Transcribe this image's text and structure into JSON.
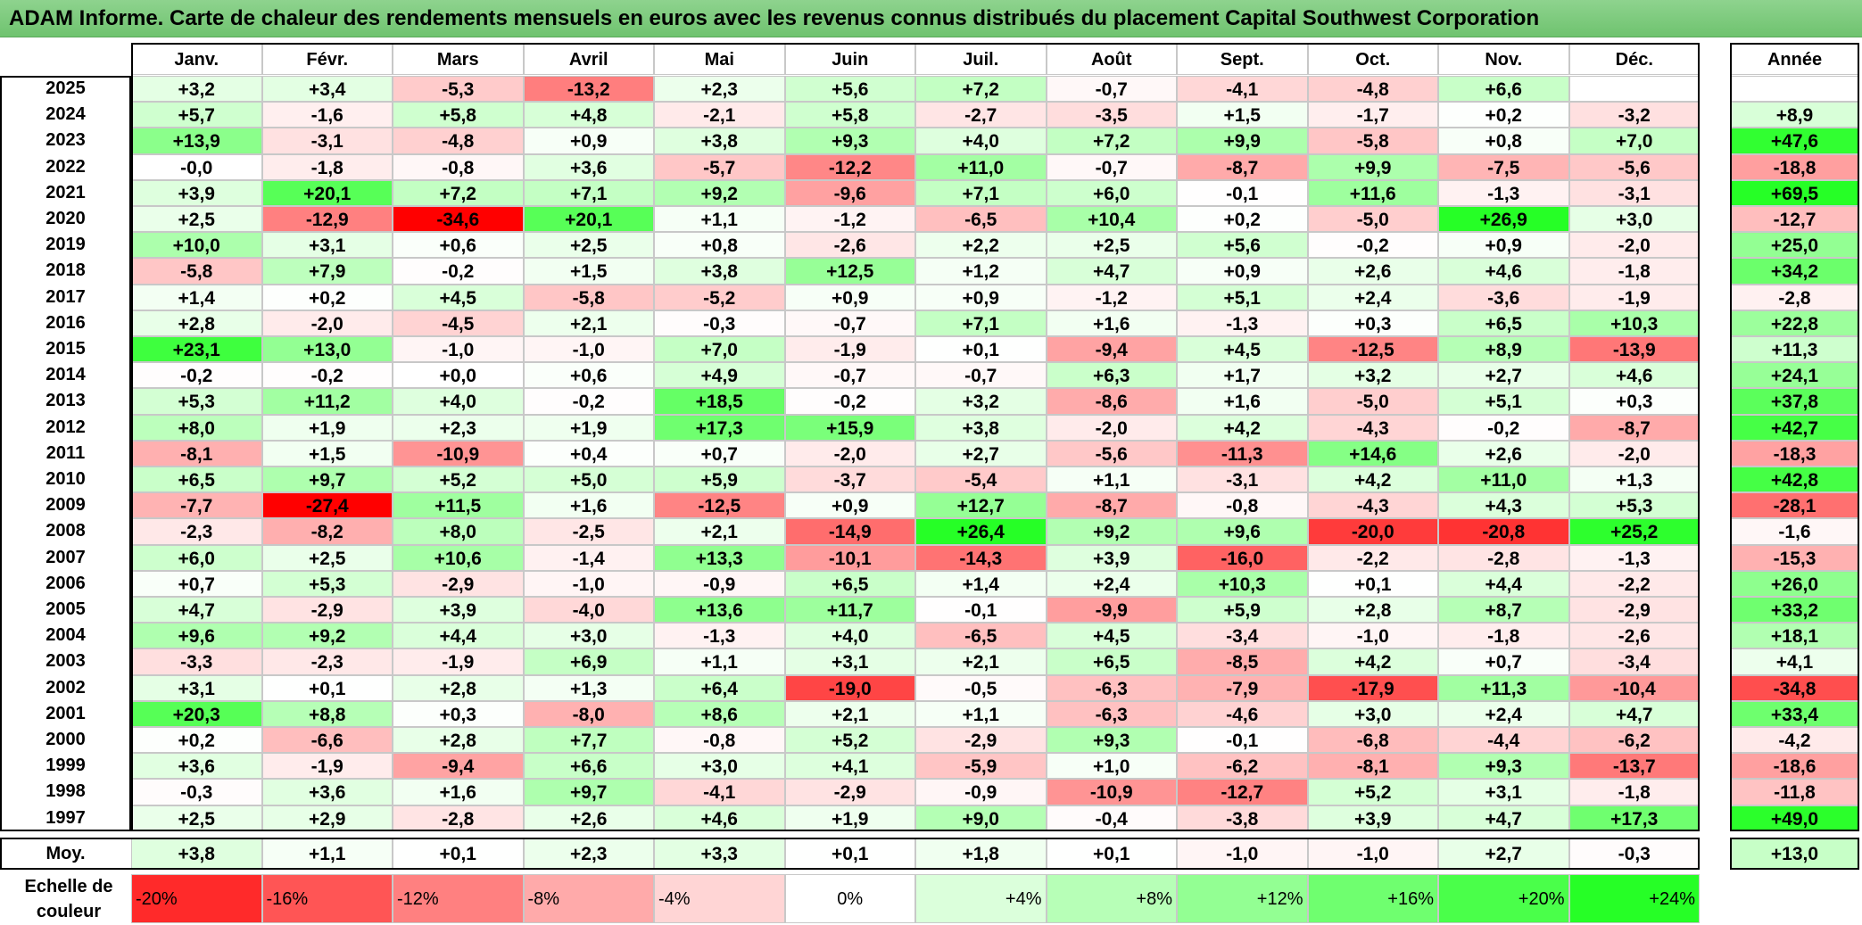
{
  "title": "ADAM Informe. Carte de chaleur des rendements mensuels en euros avec les revenus connus distribués du placement Capital Southwest Corporation",
  "chart_data": {
    "type": "heatmap",
    "title": "ADAM Informe. Carte de chaleur des rendements mensuels en euros avec les revenus connus distribués du placement Capital Southwest Corporation",
    "columns": [
      "Janv.",
      "Févr.",
      "Mars",
      "Avril",
      "Mai",
      "Juin",
      "Juil.",
      "Août",
      "Sept.",
      "Oct.",
      "Nov.",
      "Déc."
    ],
    "year_header": "Année",
    "rows": [
      {
        "year": "2025",
        "values": [
          "+3,2",
          "+3,4",
          "-5,3",
          "-13,2",
          "+2,3",
          "+5,6",
          "+7,2",
          "-0,7",
          "-4,1",
          "-4,8",
          "+6,6",
          ""
        ],
        "annual": ""
      },
      {
        "year": "2024",
        "values": [
          "+5,7",
          "-1,6",
          "+5,8",
          "+4,8",
          "-2,1",
          "+5,8",
          "-2,7",
          "-3,5",
          "+1,5",
          "-1,7",
          "+0,2",
          "-3,2"
        ],
        "annual": "+8,9"
      },
      {
        "year": "2023",
        "values": [
          "+13,9",
          "-3,1",
          "-4,8",
          "+0,9",
          "+3,8",
          "+9,3",
          "+4,0",
          "+7,2",
          "+9,9",
          "-5,8",
          "+0,8",
          "+7,0"
        ],
        "annual": "+47,6"
      },
      {
        "year": "2022",
        "values": [
          "-0,0",
          "-1,8",
          "-0,8",
          "+3,6",
          "-5,7",
          "-12,2",
          "+11,0",
          "-0,7",
          "-8,7",
          "+9,9",
          "-7,5",
          "-5,6"
        ],
        "annual": "-18,8"
      },
      {
        "year": "2021",
        "values": [
          "+3,9",
          "+20,1",
          "+7,2",
          "+7,1",
          "+9,2",
          "-9,6",
          "+7,1",
          "+6,0",
          "-0,1",
          "+11,6",
          "-1,3",
          "-3,1"
        ],
        "annual": "+69,5"
      },
      {
        "year": "2020",
        "values": [
          "+2,5",
          "-12,9",
          "-34,6",
          "+20,1",
          "+1,1",
          "-1,2",
          "-6,5",
          "+10,4",
          "+0,2",
          "-5,0",
          "+26,9",
          "+3,0"
        ],
        "annual": "-12,7"
      },
      {
        "year": "2019",
        "values": [
          "+10,0",
          "+3,1",
          "+0,6",
          "+2,5",
          "+0,8",
          "-2,6",
          "+2,2",
          "+2,5",
          "+5,6",
          "-0,2",
          "+0,9",
          "-2,0"
        ],
        "annual": "+25,0"
      },
      {
        "year": "2018",
        "values": [
          "-5,8",
          "+7,9",
          "-0,2",
          "+1,5",
          "+3,8",
          "+12,5",
          "+1,2",
          "+4,7",
          "+0,9",
          "+2,6",
          "+4,6",
          "-1,8"
        ],
        "annual": "+34,2"
      },
      {
        "year": "2017",
        "values": [
          "+1,4",
          "+0,2",
          "+4,5",
          "-5,8",
          "-5,2",
          "+0,9",
          "+0,9",
          "-1,2",
          "+5,1",
          "+2,4",
          "-3,6",
          "-1,9"
        ],
        "annual": "-2,8"
      },
      {
        "year": "2016",
        "values": [
          "+2,8",
          "-2,0",
          "-4,5",
          "+2,1",
          "-0,3",
          "-0,7",
          "+7,1",
          "+1,6",
          "-1,3",
          "+0,3",
          "+6,5",
          "+10,3"
        ],
        "annual": "+22,8"
      },
      {
        "year": "2015",
        "values": [
          "+23,1",
          "+13,0",
          "-1,0",
          "-1,0",
          "+7,0",
          "-1,9",
          "+0,1",
          "-9,4",
          "+4,5",
          "-12,5",
          "+8,9",
          "-13,9"
        ],
        "annual": "+11,3"
      },
      {
        "year": "2014",
        "values": [
          "-0,2",
          "-0,2",
          "+0,0",
          "+0,6",
          "+4,9",
          "-0,7",
          "-0,7",
          "+6,3",
          "+1,7",
          "+3,2",
          "+2,7",
          "+4,6"
        ],
        "annual": "+24,1"
      },
      {
        "year": "2013",
        "values": [
          "+5,3",
          "+11,2",
          "+4,0",
          "-0,2",
          "+18,5",
          "-0,2",
          "+3,2",
          "-8,6",
          "+1,6",
          "-5,0",
          "+5,1",
          "+0,3"
        ],
        "annual": "+37,8"
      },
      {
        "year": "2012",
        "values": [
          "+8,0",
          "+1,9",
          "+2,3",
          "+1,9",
          "+17,3",
          "+15,9",
          "+3,8",
          "-2,0",
          "+4,2",
          "-4,3",
          "-0,2",
          "-8,7"
        ],
        "annual": "+42,7"
      },
      {
        "year": "2011",
        "values": [
          "-8,1",
          "+1,5",
          "-10,9",
          "+0,4",
          "+0,7",
          "-2,0",
          "+2,7",
          "-5,6",
          "-11,3",
          "+14,6",
          "+2,6",
          "-2,0"
        ],
        "annual": "-18,3"
      },
      {
        "year": "2010",
        "values": [
          "+6,5",
          "+9,7",
          "+5,2",
          "+5,0",
          "+5,9",
          "-3,7",
          "-5,4",
          "+1,1",
          "-3,1",
          "+4,2",
          "+11,0",
          "+1,3"
        ],
        "annual": "+42,8"
      },
      {
        "year": "2009",
        "values": [
          "-7,7",
          "-27,4",
          "+11,5",
          "+1,6",
          "-12,5",
          "+0,9",
          "+12,7",
          "-8,7",
          "-0,8",
          "-4,3",
          "+4,3",
          "+5,3"
        ],
        "annual": "-28,1"
      },
      {
        "year": "2008",
        "values": [
          "-2,3",
          "-8,2",
          "+8,0",
          "-2,5",
          "+2,1",
          "-14,9",
          "+26,4",
          "+9,2",
          "+9,6",
          "-20,0",
          "-20,8",
          "+25,2"
        ],
        "annual": "-1,6"
      },
      {
        "year": "2007",
        "values": [
          "+6,0",
          "+2,5",
          "+10,6",
          "-1,4",
          "+13,3",
          "-10,1",
          "-14,3",
          "+3,9",
          "-16,0",
          "-2,2",
          "-2,8",
          "-1,3"
        ],
        "annual": "-15,3"
      },
      {
        "year": "2006",
        "values": [
          "+0,7",
          "+5,3",
          "-2,9",
          "-1,0",
          "-0,9",
          "+6,5",
          "+1,4",
          "+2,4",
          "+10,3",
          "+0,1",
          "+4,4",
          "-2,2"
        ],
        "annual": "+26,0"
      },
      {
        "year": "2005",
        "values": [
          "+4,7",
          "-2,9",
          "+3,9",
          "-4,0",
          "+13,6",
          "+11,7",
          "-0,1",
          "-9,9",
          "+5,9",
          "+2,8",
          "+8,7",
          "-2,9"
        ],
        "annual": "+33,2"
      },
      {
        "year": "2004",
        "values": [
          "+9,6",
          "+9,2",
          "+4,4",
          "+3,0",
          "-1,3",
          "+4,0",
          "-6,5",
          "+4,5",
          "-3,4",
          "-1,0",
          "-1,8",
          "-2,6"
        ],
        "annual": "+18,1"
      },
      {
        "year": "2003",
        "values": [
          "-3,3",
          "-2,3",
          "-1,9",
          "+6,9",
          "+1,1",
          "+3,1",
          "+2,1",
          "+6,5",
          "-8,5",
          "+4,2",
          "+0,7",
          "-3,4"
        ],
        "annual": "+4,1"
      },
      {
        "year": "2002",
        "values": [
          "+3,1",
          "+0,1",
          "+2,8",
          "+1,3",
          "+6,4",
          "-19,0",
          "-0,5",
          "-6,3",
          "-7,9",
          "-17,9",
          "+11,3",
          "-10,4"
        ],
        "annual": "-34,8"
      },
      {
        "year": "2001",
        "values": [
          "+20,3",
          "+8,8",
          "+0,3",
          "-8,0",
          "+8,6",
          "+2,1",
          "+1,1",
          "-6,3",
          "-4,6",
          "+3,0",
          "+2,4",
          "+4,7"
        ],
        "annual": "+33,4"
      },
      {
        "year": "2000",
        "values": [
          "+0,2",
          "-6,6",
          "+2,8",
          "+7,7",
          "-0,8",
          "+5,2",
          "-2,9",
          "+9,3",
          "-0,1",
          "-6,8",
          "-4,4",
          "-6,2"
        ],
        "annual": "-4,2"
      },
      {
        "year": "1999",
        "values": [
          "+3,6",
          "-1,9",
          "-9,4",
          "+6,6",
          "+3,0",
          "+4,1",
          "-5,9",
          "+1,0",
          "-6,2",
          "-8,1",
          "+9,3",
          "-13,7"
        ],
        "annual": "-18,6"
      },
      {
        "year": "1998",
        "values": [
          "-0,3",
          "+3,6",
          "+1,6",
          "+9,7",
          "-4,1",
          "-2,9",
          "-0,9",
          "-10,9",
          "-12,7",
          "+5,2",
          "+3,1",
          "-1,8"
        ],
        "annual": "-11,8"
      },
      {
        "year": "1997",
        "values": [
          "+2,5",
          "+2,9",
          "-2,8",
          "+2,6",
          "+4,6",
          "+1,9",
          "+9,0",
          "-0,4",
          "-3,8",
          "+3,9",
          "+4,7",
          "+17,3"
        ],
        "annual": "+49,0"
      }
    ],
    "average": {
      "label": "Moy.",
      "values": [
        "+3,8",
        "+1,1",
        "+0,1",
        "+2,3",
        "+3,3",
        "+0,1",
        "+1,8",
        "+0,1",
        "-1,0",
        "-1,0",
        "+2,7",
        "-0,3"
      ],
      "annual": "+13,0"
    },
    "scale": {
      "label": "Echelle de couleur",
      "items": [
        "-20%",
        "-16%",
        "-12%",
        "-8%",
        "-4%",
        "0%",
        "+4%",
        "+8%",
        "+12%",
        "+16%",
        "+20%",
        "+24%"
      ],
      "values": [
        -20,
        -16,
        -12,
        -8,
        -4,
        0,
        4,
        8,
        12,
        16,
        20,
        24
      ]
    },
    "colors": {
      "negative_max": "#ff0000",
      "neutral": "#ffffff",
      "positive_max": "#00ff00",
      "title_bar": "#7ccc7c"
    }
  }
}
